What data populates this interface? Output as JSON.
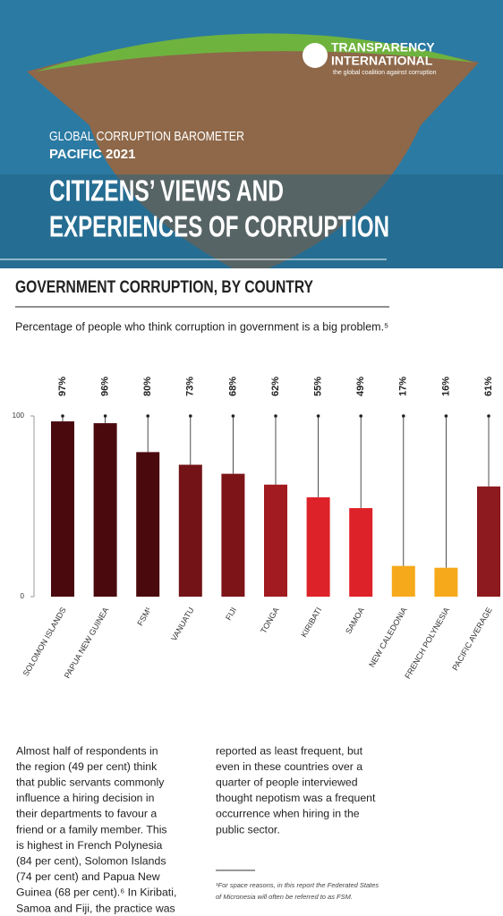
{
  "header": {
    "logo_line1": "TRANSPARENCY",
    "logo_line2": "INTERNATIONAL",
    "logo_tagline": "the global coalition against corruption",
    "kicker": "GLOBAL CORRUPTION BAROMETER",
    "edition": "PACIFIC 2021",
    "title_lines": [
      "CITIZENS’ VIEWS AND",
      "EXPERIENCES OF CORRUPTION"
    ]
  },
  "section_title": "GOVERNMENT CORRUPTION, BY COUNTRY",
  "chart_data": {
    "type": "bar",
    "subtitle": "Percentage of people who think corruption in government is a big problem.⁵",
    "categories": [
      "SOLOMON ISLANDS",
      "PAPUA NEW GUINEA",
      "FSM¹",
      "VANUATU",
      "FIJI",
      "TONGA",
      "KIRIBATI",
      "SAMOA",
      "NEW CALEDONIA",
      "FRENCH POLYNESIA",
      "PACIFIC AVERAGE"
    ],
    "values": [
      97,
      96,
      80,
      73,
      68,
      62,
      55,
      49,
      17,
      16,
      61
    ],
    "value_labels": [
      "97%",
      "96%",
      "80%",
      "73%",
      "68%",
      "62%",
      "55%",
      "49%",
      "17%",
      "16%",
      "61%"
    ],
    "colors": [
      "#4a090d",
      "#4a090d",
      "#4a090d",
      "#731317",
      "#7c1418",
      "#a11b21",
      "#dd2229",
      "#dd2229",
      "#f6a91b",
      "#f6a91b",
      "#8d1a1f"
    ],
    "ylim": [
      0,
      100
    ],
    "yticks": [
      0,
      100
    ]
  },
  "body": {
    "left_lines": [
      "Almost half of respondents in",
      "the region (49 per cent) think",
      "that public servants commonly",
      "influence a hiring decision in",
      "their departments to favour a",
      "friend or a family member. This",
      "is highest in French Polynesia",
      "(84 per cent), Solomon Islands",
      "(74 per cent) and Papua New",
      "Guinea (68 per cent).⁶ In Kiribati,",
      "Samoa and Fiji, the practice was"
    ],
    "right_lines": [
      "reported as least frequent, but",
      "even in these countries over a",
      "quarter of people interviewed",
      "thought nepotism was a frequent",
      "occurrence when hiring in the",
      "public sector."
    ],
    "footnote_lines": [
      "¹For space reasons, in this report the Federated States",
      "of Micronesia will often be referred to as FSM."
    ]
  }
}
